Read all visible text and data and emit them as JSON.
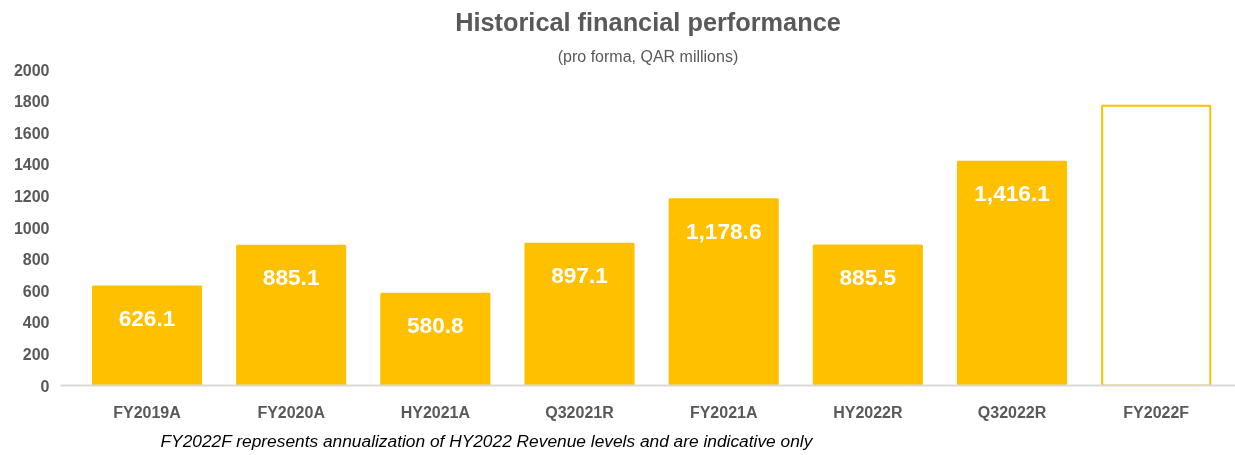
{
  "chart_data": {
    "type": "bar",
    "title": "Historical financial performance",
    "subtitle": "(pro forma, QAR millions)",
    "categories": [
      "FY2019A",
      "FY2020A",
      "HY2021A",
      "Q32021R",
      "FY2021A",
      "HY2022R",
      "Q32022R",
      "FY2022F"
    ],
    "values": [
      626.1,
      885.1,
      580.8,
      897.1,
      1178.6,
      885.5,
      1416.1,
      1771
    ],
    "value_labels": [
      "626.1",
      "885.1",
      "580.8",
      "897.1",
      "1,178.6",
      "885.5",
      "1,416.1",
      null
    ],
    "color": "#ffc000",
    "colors": [
      "#ffc000",
      "#ffc000",
      "#ffc000",
      "#ffc000",
      "#ffc000",
      "#ffc000",
      "#ffc000",
      "#ffffff"
    ],
    "ylim": [
      0,
      2000
    ],
    "yticks": [
      0,
      200,
      400,
      600,
      800,
      1000,
      1200,
      1400,
      1600,
      1800,
      2000
    ],
    "grid": false,
    "annotations": [
      "FY2022F represents annualization of HY2022 Revenue levels and are indicative only"
    ]
  }
}
